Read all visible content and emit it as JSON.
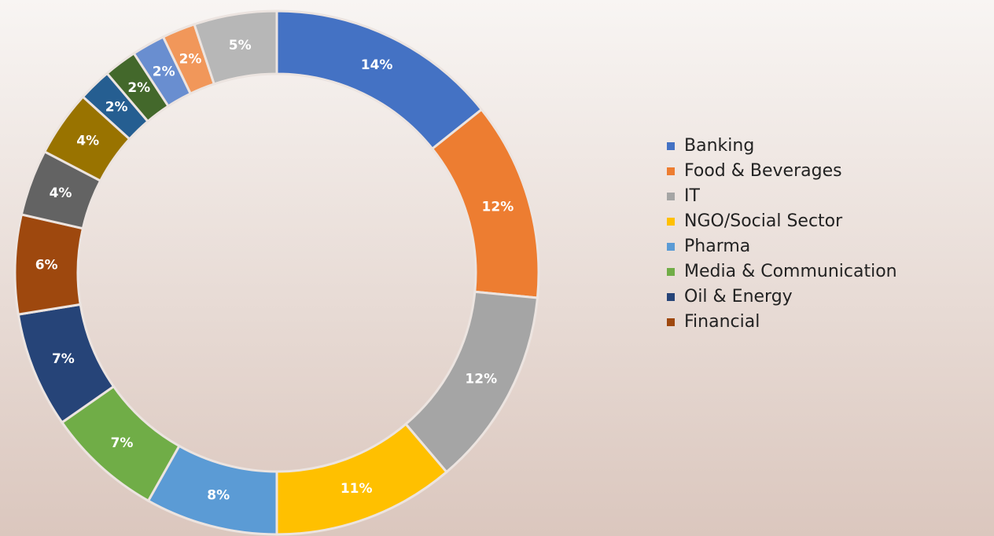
{
  "chart_data": {
    "type": "donut",
    "categories": [
      "Banking",
      "Food & Beverages",
      "IT",
      "NGO/Social Sector",
      "Pharma",
      "Media & Communication",
      "Oil & Energy",
      "Financial",
      null,
      null,
      null,
      null,
      null,
      null,
      null
    ],
    "values": [
      14,
      12,
      12,
      11,
      8,
      7,
      7,
      6,
      4,
      4,
      2,
      2,
      2,
      2,
      5
    ],
    "value_labels": [
      "14%",
      "12%",
      "12%",
      "11%",
      "8%",
      "7%",
      "7%",
      "6%",
      "4%",
      "4%",
      "2%",
      "2%",
      "2%",
      "2%",
      "5%"
    ],
    "colors": [
      "#4472c4",
      "#ed7d31",
      "#a5a5a5",
      "#ffc000",
      "#5b9bd5",
      "#70ad47",
      "#264478",
      "#9e480e",
      "#636363",
      "#997300",
      "#255e91",
      "#43682b",
      "#698ed0",
      "#f1975a",
      "#b7b7b7"
    ],
    "legend": "right"
  }
}
